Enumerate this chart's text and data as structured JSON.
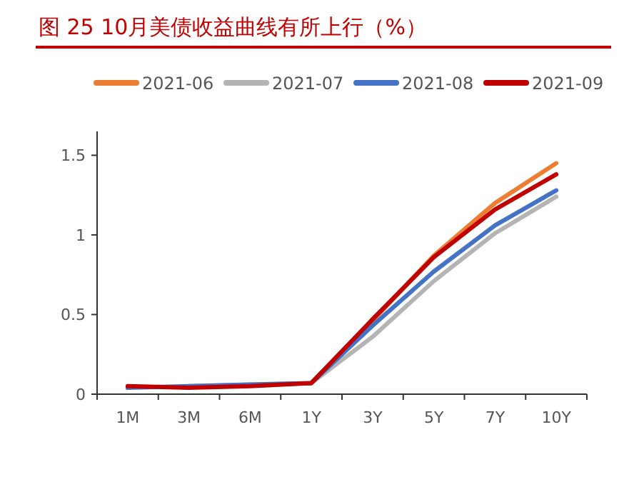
{
  "chart_data": {
    "type": "line",
    "title": "图 25   10月美债收益曲线有所上行（%）",
    "categories": [
      "1M",
      "3M",
      "6M",
      "1Y",
      "3Y",
      "5Y",
      "7Y",
      "10Y"
    ],
    "series": [
      {
        "name": "2021-06",
        "color": "#ed7d31",
        "values": [
          null,
          null,
          null,
          0.07,
          0.46,
          0.87,
          1.2,
          1.45
        ]
      },
      {
        "name": "2021-07",
        "color": "#b4b4b4",
        "values": [
          null,
          0.05,
          0.06,
          0.07,
          0.36,
          0.71,
          1.01,
          1.24
        ]
      },
      {
        "name": "2021-08",
        "color": "#4472c4",
        "values": [
          0.04,
          0.05,
          0.06,
          0.07,
          0.43,
          0.77,
          1.06,
          1.28
        ]
      },
      {
        "name": "2021-09",
        "color": "#c00000",
        "values": [
          0.05,
          0.04,
          0.05,
          0.07,
          0.47,
          0.86,
          1.16,
          1.38
        ]
      }
    ],
    "ylim": [
      0,
      1.65
    ],
    "yticks": [
      0,
      {
        "value": 0.5,
        "label": "0.5"
      },
      1,
      1.5
    ],
    "legend": "top"
  }
}
